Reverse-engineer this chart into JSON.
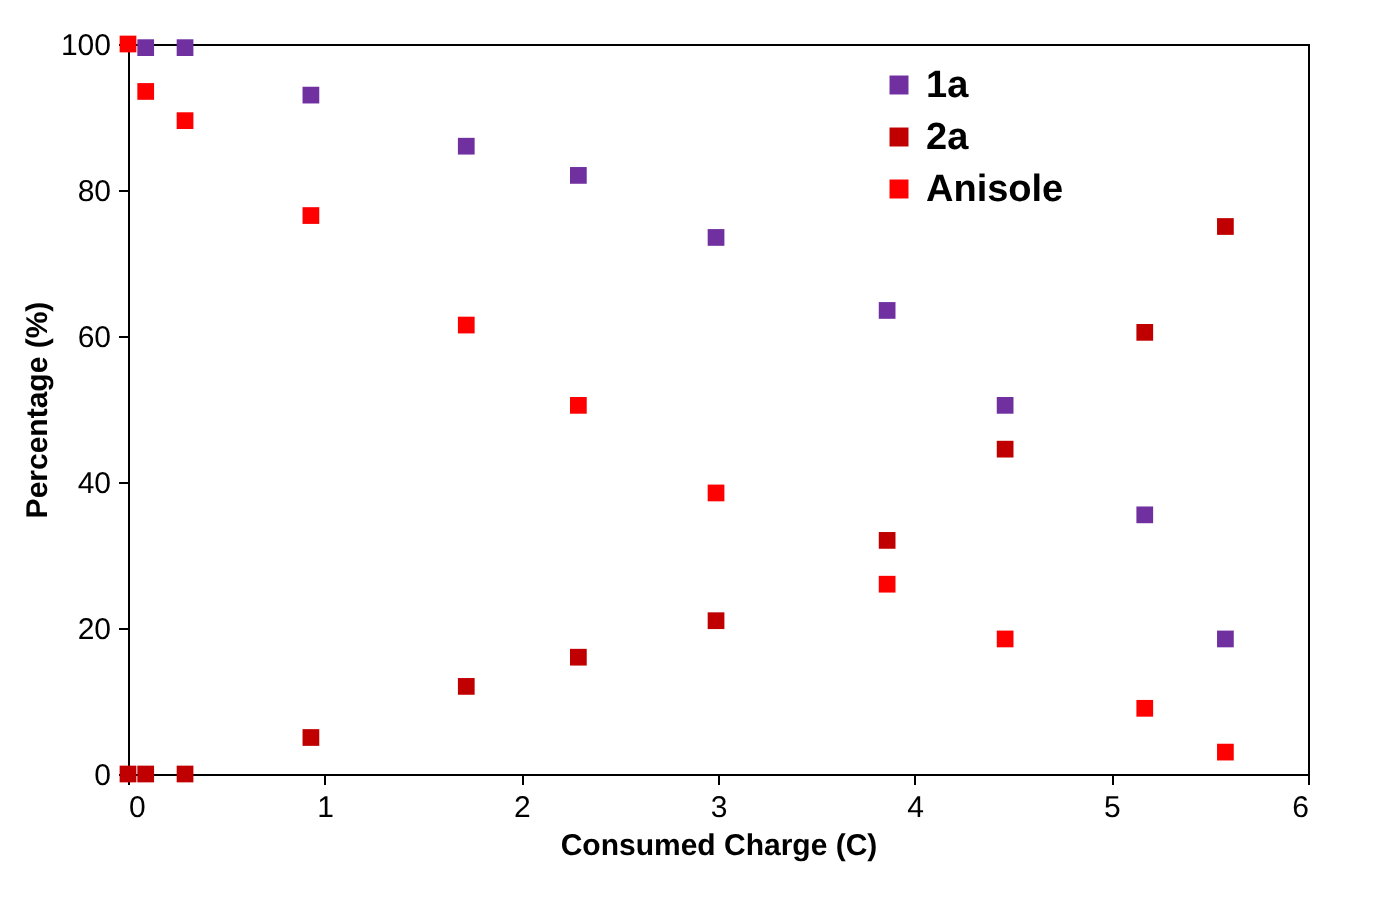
{
  "chart_data": {
    "type": "scatter",
    "xlabel": "Consumed Charge (C)",
    "ylabel": "Percentage (%)",
    "x": [
      0,
      0.09,
      0.29,
      0.93,
      1.72,
      2.29,
      2.99,
      3.86,
      4.46,
      5.17,
      5.58
    ],
    "series": [
      {
        "name": "1a",
        "color": "#7030a0",
        "values": [
          null,
          99.5,
          99.5,
          93,
          86,
          82,
          73.5,
          63.5,
          50.5,
          35.5,
          18.5
        ]
      },
      {
        "name": "2a",
        "color": "#c00000",
        "values": [
          0,
          0,
          0,
          5,
          12,
          16,
          21,
          32,
          44.5,
          60.5,
          75
        ]
      },
      {
        "name": "Anisole",
        "color": "#ff0000",
        "values": [
          100,
          93.5,
          89.5,
          76.5,
          61.5,
          50.5,
          38.5,
          26,
          18.5,
          9,
          3
        ]
      }
    ],
    "xlim": [
      0,
      6
    ],
    "xticks": [
      0,
      1,
      2,
      3,
      4,
      5,
      6
    ],
    "ylim": [
      0,
      100
    ],
    "yticks": [
      0,
      20,
      40,
      60,
      80,
      100
    ],
    "marker": "square",
    "grid": false,
    "legend": "top right"
  }
}
